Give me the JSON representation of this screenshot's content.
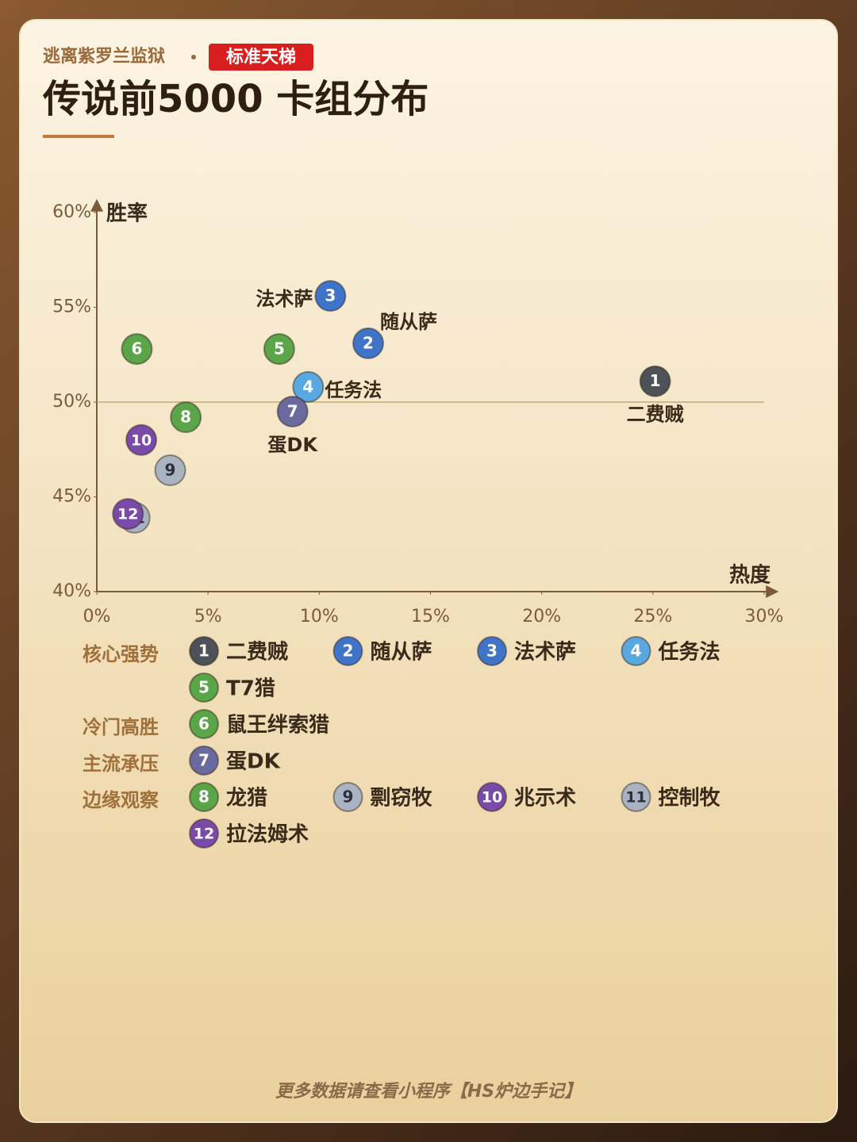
{
  "chart_data": {
    "type": "scatter",
    "header": "逃离紫罗兰监狱",
    "badge": "标准天梯",
    "title": "传说前5000 卡组分布",
    "xlabel": "热度",
    "ylabel": "胜率",
    "xlim": [
      0,
      30
    ],
    "ylim": [
      40,
      60
    ],
    "xticks": [
      {
        "value": 0,
        "label": "0%"
      },
      {
        "value": 5,
        "label": "5%"
      },
      {
        "value": 10,
        "label": "10%"
      },
      {
        "value": 15,
        "label": "15%"
      },
      {
        "value": 20,
        "label": "20%"
      },
      {
        "value": 25,
        "label": "25%"
      },
      {
        "value": 30,
        "label": "30%"
      }
    ],
    "yticks": [
      {
        "value": 40,
        "label": "40%"
      },
      {
        "value": 45,
        "label": "45%"
      },
      {
        "value": 50,
        "label": "50%"
      },
      {
        "value": 55,
        "label": "55%"
      },
      {
        "value": 60,
        "label": "60%"
      }
    ],
    "reference_line": 50,
    "groups": [
      {
        "name": "核心强势",
        "points": [
          {
            "id": 1,
            "name": "二费贼",
            "x": 25.1,
            "y": 51.1,
            "color": "#4d5259"
          },
          {
            "id": 2,
            "name": "随从萨",
            "x": 12.2,
            "y": 53.1,
            "color": "#3f74c9"
          },
          {
            "id": 3,
            "name": "法术萨",
            "x": 10.5,
            "y": 55.6,
            "color": "#3f74c9"
          },
          {
            "id": 4,
            "name": "任务法",
            "x": 9.5,
            "y": 50.8,
            "color": "#5aa8e0"
          },
          {
            "id": 5,
            "name": "T7猎",
            "x": 8.2,
            "y": 52.8,
            "color": "#5aa548"
          }
        ]
      },
      {
        "name": "冷门高胜",
        "points": [
          {
            "id": 6,
            "name": "鼠王绊索猎",
            "x": 1.8,
            "y": 52.8,
            "color": "#5aa548"
          }
        ]
      },
      {
        "name": "主流承压",
        "points": [
          {
            "id": 7,
            "name": "蛋DK",
            "x": 8.8,
            "y": 49.5,
            "color": "#6b6a9e"
          }
        ]
      },
      {
        "name": "边缘观察",
        "points": [
          {
            "id": 8,
            "name": "龙猎",
            "x": 4.0,
            "y": 49.2,
            "color": "#5aa548"
          },
          {
            "id": 9,
            "name": "剽窃牧",
            "x": 3.3,
            "y": 46.4,
            "color": "#a9b3c2"
          },
          {
            "id": 10,
            "name": "兆示术",
            "x": 2.0,
            "y": 48.0,
            "color": "#7a4aa8"
          },
          {
            "id": 11,
            "name": "控制牧",
            "x": 1.7,
            "y": 43.9,
            "color": "#a9b3c2"
          },
          {
            "id": 12,
            "name": "拉法姆术",
            "x": 1.4,
            "y": 44.1,
            "color": "#7a4aa8"
          }
        ]
      }
    ],
    "footer": "更多数据请查看小程序【HS炉边手记】"
  }
}
